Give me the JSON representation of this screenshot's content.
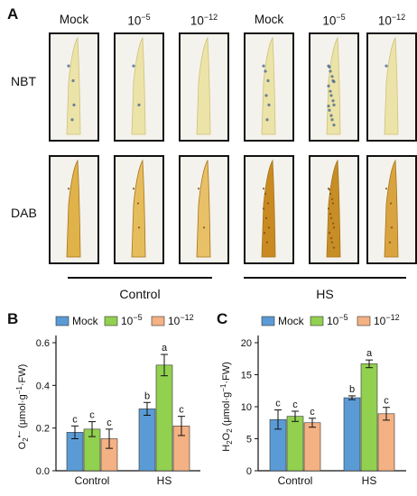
{
  "panel_a": {
    "letter": "A",
    "columns": [
      {
        "base": "Mock",
        "exp": ""
      },
      {
        "base": "10",
        "exp": "−5"
      },
      {
        "base": "10",
        "exp": "−12"
      },
      {
        "base": "Mock",
        "exp": ""
      },
      {
        "base": "10",
        "exp": "−5"
      },
      {
        "base": "10",
        "exp": "−12"
      }
    ],
    "rows": [
      "NBT",
      "DAB"
    ],
    "groups": [
      "Control",
      "HS"
    ]
  },
  "colors": {
    "mock": "#5b9bd5",
    "e5": "#92d050",
    "e12": "#f4b183"
  },
  "chart_data": [
    {
      "type": "bar",
      "panel": "B",
      "ylabel": "O2•− (μmol·g−1·FW)",
      "categories": [
        "Control",
        "HS"
      ],
      "ylim": [
        0,
        0.6
      ],
      "yticks": [
        "0.0",
        "0.2",
        "0.4",
        "0.6"
      ],
      "legend": [
        "Mock",
        "10−5",
        "10−12"
      ],
      "legend_placement": "top",
      "series": [
        {
          "name": "Mock",
          "values": [
            0.18,
            0.29
          ],
          "errors": [
            0.03,
            0.03
          ],
          "letters": [
            "c",
            "b"
          ]
        },
        {
          "name": "10−5",
          "values": [
            0.195,
            0.495
          ],
          "errors": [
            0.035,
            0.05
          ],
          "letters": [
            "c",
            "a"
          ]
        },
        {
          "name": "10−12",
          "values": [
            0.15,
            0.21
          ],
          "errors": [
            0.045,
            0.045
          ],
          "letters": [
            "c",
            "c"
          ]
        }
      ]
    },
    {
      "type": "bar",
      "panel": "C",
      "ylabel": "H2O2 (μmol·g−1·FW)",
      "categories": [
        "Control",
        "HS"
      ],
      "ylim": [
        0,
        20
      ],
      "yticks": [
        "0",
        "5",
        "10",
        "15",
        "20"
      ],
      "legend": [
        "Mock",
        "10−5",
        "10−12"
      ],
      "legend_placement": "top",
      "series": [
        {
          "name": "Mock",
          "values": [
            8.0,
            11.4
          ],
          "errors": [
            1.5,
            0.3
          ],
          "letters": [
            "c",
            "b"
          ]
        },
        {
          "name": "10−5",
          "values": [
            8.5,
            16.7
          ],
          "errors": [
            0.8,
            0.6
          ],
          "letters": [
            "c",
            "a"
          ]
        },
        {
          "name": "10−12",
          "values": [
            7.5,
            8.9
          ],
          "errors": [
            0.7,
            1.0
          ],
          "letters": [
            "c",
            "c"
          ]
        }
      ]
    }
  ]
}
